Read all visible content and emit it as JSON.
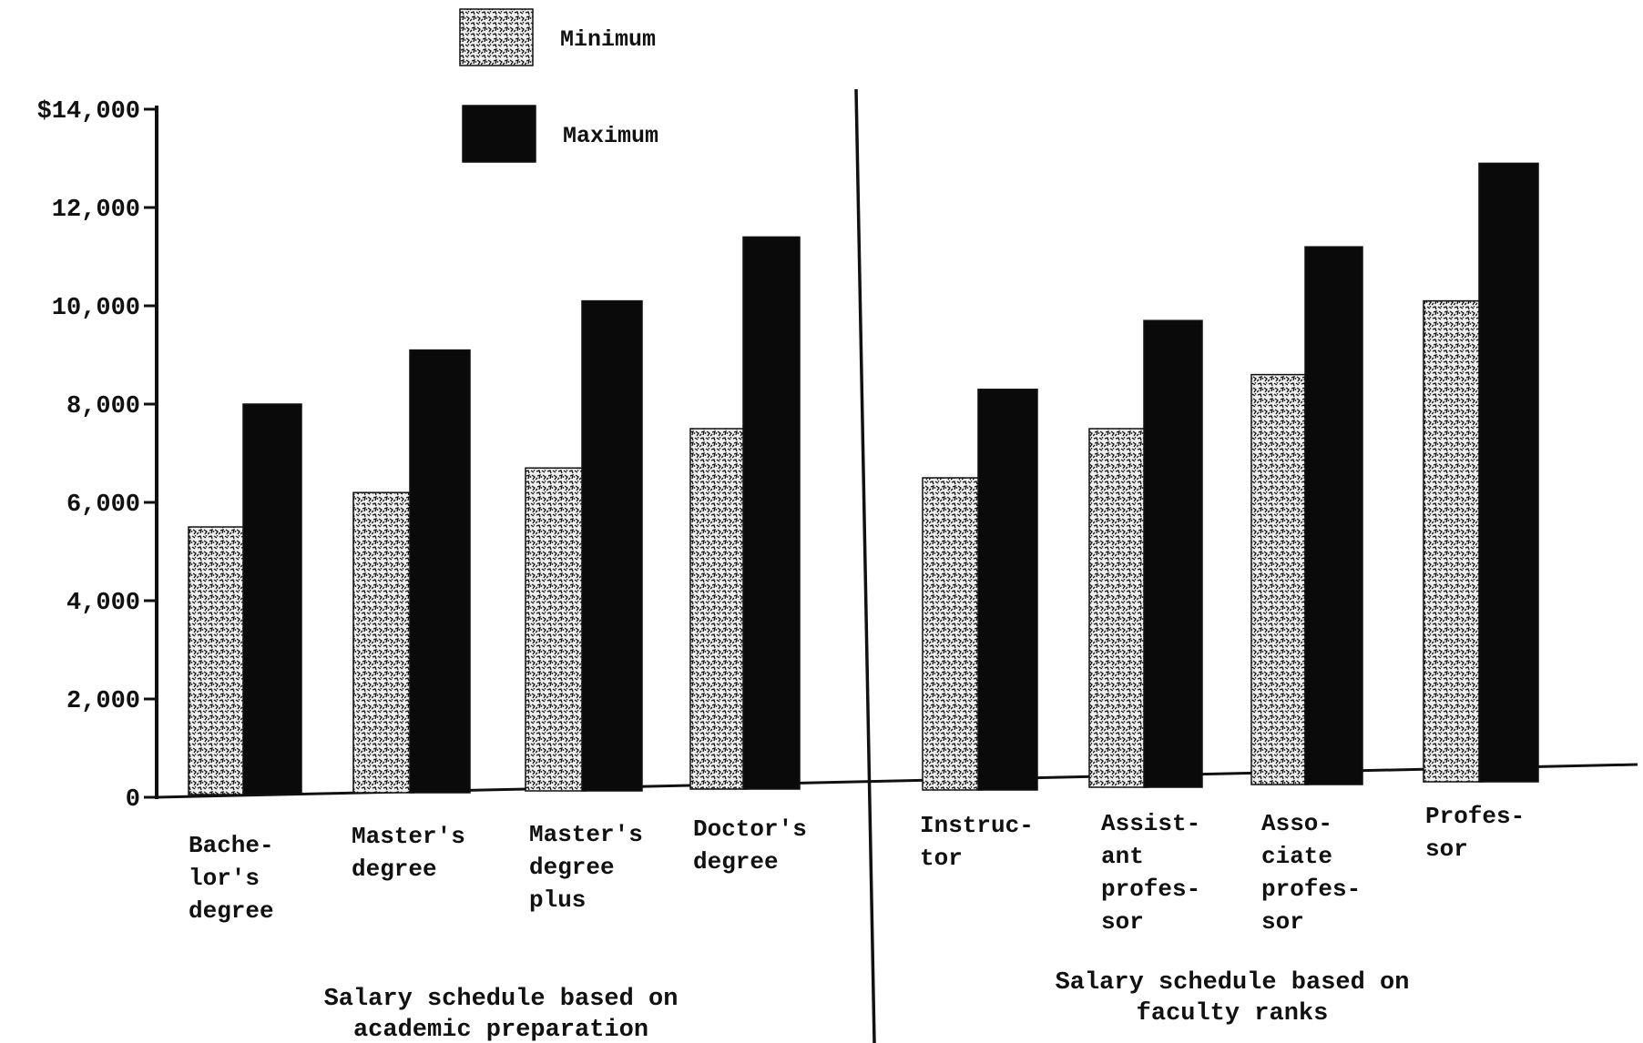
{
  "chart_data": {
    "type": "bar",
    "title": "",
    "xlabel": "",
    "ylabel": "",
    "ylim": [
      0,
      14000
    ],
    "yticks": [
      0,
      2000,
      4000,
      6000,
      8000,
      10000,
      12000,
      14000
    ],
    "ytick_labels": [
      "0",
      "2,000",
      "4,000",
      "6,000",
      "8,000",
      "10,000",
      "12,000",
      "$14,000"
    ],
    "grid": false,
    "legend_position": "top-center",
    "panels": [
      {
        "group_label": [
          "Salary schedule based on",
          "academic preparation"
        ],
        "categories": [
          [
            "Bache-",
            "lor's",
            "degree"
          ],
          [
            "Master's",
            "degree"
          ],
          [
            "Master's",
            "degree",
            "plus"
          ],
          [
            "Doctor's",
            "degree"
          ]
        ],
        "series": [
          {
            "name": "Minimum",
            "values": [
              5500,
              6200,
              6700,
              7500
            ]
          },
          {
            "name": "Maximum",
            "values": [
              8000,
              9100,
              10100,
              11400
            ]
          }
        ]
      },
      {
        "group_label": [
          "Salary schedule based on",
          "faculty ranks"
        ],
        "categories": [
          [
            "Instruc-",
            "tor"
          ],
          [
            "Assist-",
            "ant",
            "profes-",
            "sor"
          ],
          [
            "Asso-",
            "ciate",
            "profes-",
            "sor"
          ],
          [
            "Profes-",
            "sor"
          ]
        ],
        "series": [
          {
            "name": "Minimum",
            "values": [
              6500,
              7500,
              8600,
              10100
            ]
          },
          {
            "name": "Maximum",
            "values": [
              8300,
              9700,
              11200,
              12900
            ]
          }
        ]
      }
    ],
    "legend": [
      {
        "name": "Minimum",
        "pattern": "speckled"
      },
      {
        "name": "Maximum",
        "pattern": "solid"
      }
    ],
    "colors": {
      "minimum_fill": "#efefef",
      "maximum_fill": "#0a0a0a",
      "ink": "#111111"
    }
  }
}
